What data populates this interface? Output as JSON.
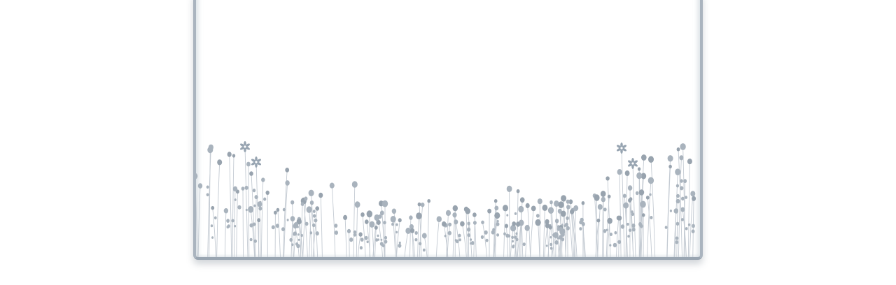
{
  "window": {
    "title": ""
  },
  "decoration": {
    "pattern": "meadow-flowers-illustration",
    "colors": {
      "stem": "#c3cad2",
      "bud": "#a9b3bd",
      "bud_dark": "#98a3ae",
      "flower": "#97a4b1",
      "frame": "#aab4bf",
      "frame_bottom": "#9aa6b2"
    }
  }
}
